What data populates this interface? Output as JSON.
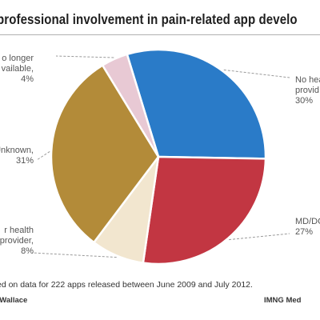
{
  "chart_data": {
    "type": "pie",
    "title": "professional involvement in pain-related app develo",
    "slices": [
      {
        "label_lines": [
          "No hea",
          "provid",
          "30%"
        ],
        "value": 30,
        "color": "#2a7bc8"
      },
      {
        "label_lines": [
          "MD/DO",
          "27%"
        ],
        "value": 27,
        "color": "#c23642"
      },
      {
        "label_lines": [
          "r health",
          "provider,",
          "8%"
        ],
        "value": 8,
        "color": "#f2e6cf"
      },
      {
        "label_lines": [
          "Unknown,",
          "31%"
        ],
        "value": 31,
        "color": "#b38b39"
      },
      {
        "label_lines": [
          "o longer",
          "vailable,",
          "4%"
        ],
        "value": 4,
        "color": "#e8c9d4"
      }
    ],
    "start_angle_deg": -17,
    "direction": "clockwise",
    "legend": "none"
  },
  "footnote": "ed on data for 222 apps released between June 2009 and July 2012.",
  "credit": ". Wallace",
  "source": "IMNG Med"
}
